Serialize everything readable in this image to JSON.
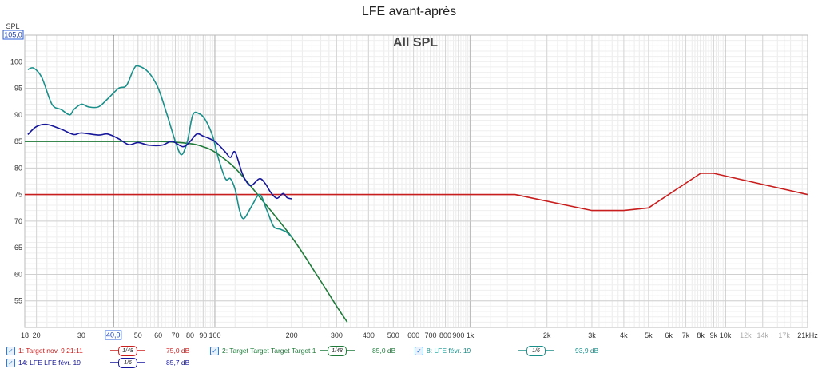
{
  "chart_data": {
    "type": "line",
    "title": "LFE avant-après",
    "overlay_label": "All SPL",
    "ylabel": "SPL",
    "xscale": "log",
    "xlim": [
      18,
      21000
    ],
    "ylim": [
      50,
      105
    ],
    "y_top_value_label": "105,0",
    "cursor_x_label": "40,0",
    "cursor_x": 40,
    "y_ticks": [
      "55",
      "60",
      "65",
      "70",
      "75",
      "80",
      "85",
      "90",
      "95",
      "100"
    ],
    "x_ticks": [
      {
        "v": 18,
        "label": "18",
        "major": true
      },
      {
        "v": 20,
        "label": "20",
        "major": true
      },
      {
        "v": 30,
        "label": "30",
        "major": true
      },
      {
        "v": 50,
        "label": "50",
        "major": true
      },
      {
        "v": 60,
        "label": "60",
        "major": true
      },
      {
        "v": 70,
        "label": "70",
        "major": true
      },
      {
        "v": 80,
        "label": "80",
        "major": true
      },
      {
        "v": 90,
        "label": "90",
        "major": true
      },
      {
        "v": 100,
        "label": "100",
        "major": true
      },
      {
        "v": 200,
        "label": "200",
        "major": true
      },
      {
        "v": 300,
        "label": "300",
        "major": true
      },
      {
        "v": 400,
        "label": "400",
        "major": true
      },
      {
        "v": 500,
        "label": "500",
        "major": true
      },
      {
        "v": 600,
        "label": "600",
        "major": true
      },
      {
        "v": 700,
        "label": "700",
        "major": true
      },
      {
        "v": 800,
        "label": "800",
        "major": true
      },
      {
        "v": 900,
        "label": "900",
        "major": true
      },
      {
        "v": 1000,
        "label": "1k",
        "major": true
      },
      {
        "v": 2000,
        "label": "2k",
        "major": true
      },
      {
        "v": 3000,
        "label": "3k",
        "major": true
      },
      {
        "v": 4000,
        "label": "4k",
        "major": true
      },
      {
        "v": 5000,
        "label": "5k",
        "major": true
      },
      {
        "v": 6000,
        "label": "6k",
        "major": true
      },
      {
        "v": 7000,
        "label": "7k",
        "major": true
      },
      {
        "v": 8000,
        "label": "8k",
        "major": true
      },
      {
        "v": 9000,
        "label": "9k",
        "major": true
      },
      {
        "v": 10000,
        "label": "10k",
        "major": true
      },
      {
        "v": 12000,
        "label": "12k",
        "major": false
      },
      {
        "v": 14000,
        "label": "14k",
        "major": false
      },
      {
        "v": 17000,
        "label": "17k",
        "major": false
      },
      {
        "v": 21000,
        "label": "21kHz",
        "major": true
      }
    ],
    "grid": true,
    "series": [
      {
        "name": "1: Target nov. 9 21:11",
        "color": "#c81e1e",
        "smoothing": "1/48",
        "value": "75,0 dB",
        "points": [
          [
            18,
            75
          ],
          [
            1500,
            75
          ],
          [
            3000,
            72
          ],
          [
            4000,
            72
          ],
          [
            5000,
            72.5
          ],
          [
            8000,
            79
          ],
          [
            9000,
            79
          ],
          [
            21000,
            75
          ]
        ]
      },
      {
        "name": "2: Target Target Target Target 1",
        "color": "#1f7a3a",
        "smoothing": "1/48",
        "value": "85,0 dB",
        "points": [
          [
            18,
            85
          ],
          [
            40,
            85
          ],
          [
            60,
            85
          ],
          [
            80,
            84.6
          ],
          [
            90,
            84
          ],
          [
            100,
            83
          ],
          [
            120,
            80
          ],
          [
            150,
            74.5
          ],
          [
            200,
            67
          ],
          [
            250,
            60
          ],
          [
            300,
            54
          ],
          [
            330,
            51
          ]
        ]
      },
      {
        "name": "8: LFE févr. 19",
        "color": "#1a8f8a",
        "smoothing": "1/6",
        "value": "93,9 dB",
        "points": [
          [
            18.5,
            98.5
          ],
          [
            19.5,
            98.8
          ],
          [
            21,
            97
          ],
          [
            23,
            92
          ],
          [
            25,
            91
          ],
          [
            27,
            90
          ],
          [
            28,
            91
          ],
          [
            30,
            92
          ],
          [
            32,
            91.5
          ],
          [
            35,
            91.5
          ],
          [
            38,
            93
          ],
          [
            42,
            95
          ],
          [
            45,
            95.5
          ],
          [
            48,
            98.5
          ],
          [
            50,
            99.2
          ],
          [
            55,
            98
          ],
          [
            60,
            95
          ],
          [
            65,
            90
          ],
          [
            70,
            85
          ],
          [
            74,
            82.5
          ],
          [
            78,
            85
          ],
          [
            82,
            90
          ],
          [
            87,
            90.2
          ],
          [
            92,
            89
          ],
          [
            98,
            86
          ],
          [
            103,
            82
          ],
          [
            110,
            78
          ],
          [
            115,
            78
          ],
          [
            120,
            76
          ],
          [
            125,
            72
          ],
          [
            130,
            70.5
          ],
          [
            140,
            73
          ],
          [
            150,
            75
          ],
          [
            160,
            72
          ],
          [
            170,
            69
          ],
          [
            180,
            68.5
          ],
          [
            190,
            68
          ],
          [
            200,
            67
          ]
        ]
      },
      {
        "name": "14: LFE LFE févr. 19",
        "color": "#16169a",
        "smoothing": "1/6",
        "value": "85,7 dB",
        "points": [
          [
            18.5,
            86.3
          ],
          [
            20,
            87.8
          ],
          [
            22,
            88.2
          ],
          [
            25,
            87.3
          ],
          [
            28,
            86.3
          ],
          [
            30,
            86.6
          ],
          [
            35,
            86.2
          ],
          [
            38,
            86.4
          ],
          [
            42,
            85.5
          ],
          [
            46,
            84.4
          ],
          [
            50,
            84.8
          ],
          [
            55,
            84.3
          ],
          [
            62,
            84.3
          ],
          [
            68,
            85
          ],
          [
            75,
            84
          ],
          [
            80,
            85
          ],
          [
            85,
            86.4
          ],
          [
            90,
            86
          ],
          [
            100,
            85
          ],
          [
            110,
            83
          ],
          [
            115,
            82
          ],
          [
            120,
            83
          ],
          [
            128,
            79
          ],
          [
            135,
            77
          ],
          [
            140,
            76.8
          ],
          [
            150,
            78
          ],
          [
            158,
            77
          ],
          [
            165,
            75.5
          ],
          [
            175,
            74.3
          ],
          [
            185,
            75.2
          ],
          [
            192,
            74.4
          ],
          [
            200,
            74.2
          ]
        ]
      }
    ]
  }
}
